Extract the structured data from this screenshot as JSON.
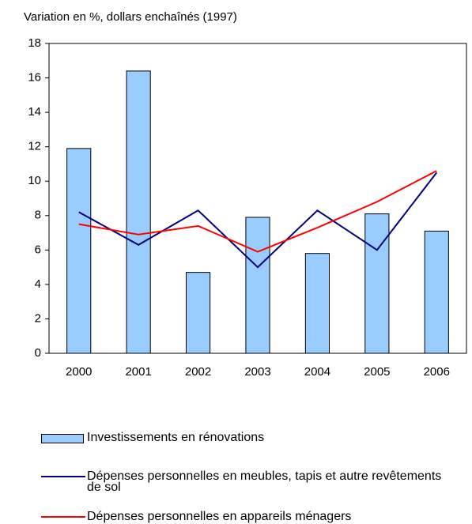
{
  "chart_data": {
    "type": "bar_line",
    "subtitle": "Variation en %, dollars enchaînés (1997)",
    "categories": [
      "2000",
      "2001",
      "2002",
      "2003",
      "2004",
      "2005",
      "2006"
    ],
    "series": [
      {
        "name": "Investissements en rénovations",
        "type": "bar",
        "color": "#99ccff",
        "values": [
          11.9,
          16.4,
          4.7,
          7.9,
          5.8,
          8.1,
          7.1
        ]
      },
      {
        "name": "Dépenses personnelles en meubles, tapis et autre revêtements de sol",
        "type": "line",
        "color": "#000080",
        "values": [
          8.2,
          6.3,
          8.3,
          5.0,
          8.3,
          6.0,
          10.5
        ]
      },
      {
        "name": "Dépenses personnelles en appareils ménagers",
        "type": "line",
        "color": "#ff0000",
        "values": [
          7.5,
          6.9,
          7.4,
          5.9,
          7.3,
          8.8,
          10.6
        ]
      }
    ],
    "ylim": [
      0,
      18
    ],
    "yticks": [
      0,
      2,
      4,
      6,
      8,
      10,
      12,
      14,
      16,
      18
    ],
    "grid": false
  }
}
